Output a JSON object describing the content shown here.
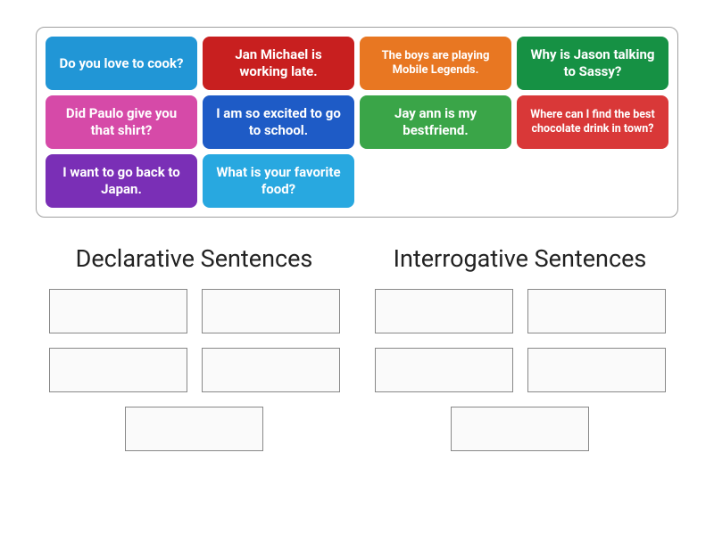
{
  "tiles": [
    {
      "text": "Do you love to cook?",
      "bg": "#2196d6",
      "fontSize": "15px"
    },
    {
      "text": "Jan Michael is working late.",
      "bg": "#c81f1f",
      "fontSize": "15px"
    },
    {
      "text": "The boys are playing Mobile Legends.",
      "bg": "#e87722",
      "fontSize": "13px"
    },
    {
      "text": "Why is Jason talking to Sassy?",
      "bg": "#169144",
      "fontSize": "15px"
    },
    {
      "text": "Did Paulo give you that shirt?",
      "bg": "#d64aa8",
      "fontSize": "15px"
    },
    {
      "text": "I am so excited to go to school.",
      "bg": "#1e5bc6",
      "fontSize": "15px"
    },
    {
      "text": "Jay ann is my bestfriend.",
      "bg": "#3aa548",
      "fontSize": "15px"
    },
    {
      "text": "Where can I find the best chocolate drink in town?",
      "bg": "#d93838",
      "fontSize": "12.5px"
    },
    {
      "text": "I want to go back to Japan.",
      "bg": "#7a2fb6",
      "fontSize": "15px"
    },
    {
      "text": "What is your favorite food?",
      "bg": "#28a8e0",
      "fontSize": "15px"
    }
  ],
  "categories": [
    {
      "title": "Declarative Sentences",
      "slots": 5
    },
    {
      "title": "Interrogative Sentences",
      "slots": 5
    }
  ],
  "dropZone": {
    "border_color": "#888",
    "bg_color": "#fafafa"
  },
  "container": {
    "border_color": "#a0a0a0"
  }
}
